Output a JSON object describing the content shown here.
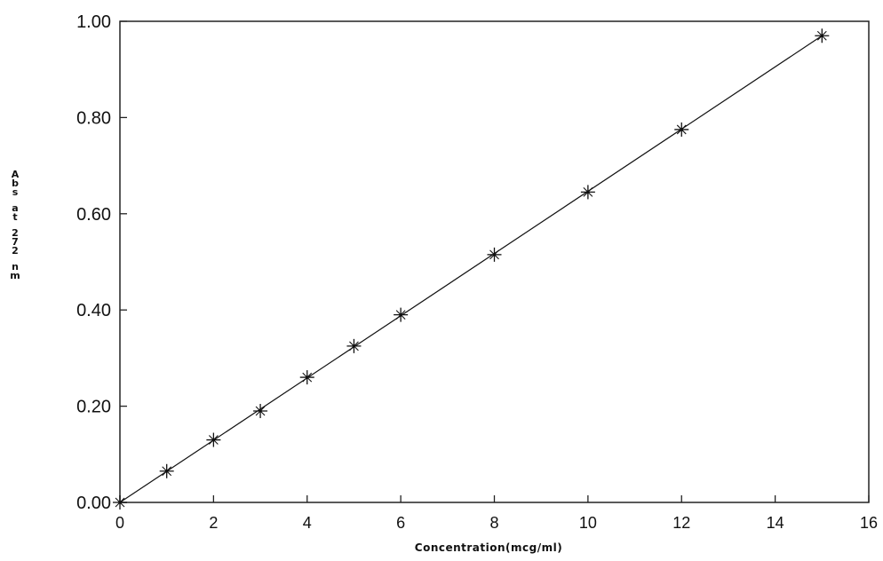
{
  "chart_data": {
    "type": "line",
    "xlabel": "Concentration(mcg/ml)",
    "ylabel": "Abs at 272 nm",
    "xlim": [
      0,
      16
    ],
    "ylim": [
      0,
      1.0
    ],
    "xticks": [
      "0",
      "2",
      "4",
      "6",
      "8",
      "10",
      "12",
      "14",
      "16"
    ],
    "yticks": [
      "0.00",
      "0.20",
      "0.40",
      "0.60",
      "0.80",
      "1.00"
    ],
    "grid": false,
    "series": [
      {
        "marker": "star",
        "x": [
          0,
          1,
          2,
          3,
          4,
          5,
          6,
          8,
          10,
          12,
          15
        ],
        "y": [
          0.0,
          0.065,
          0.13,
          0.19,
          0.26,
          0.325,
          0.39,
          0.515,
          0.645,
          0.775,
          0.97
        ]
      }
    ],
    "fit_line": {
      "x": [
        0,
        15
      ],
      "y": [
        0.0,
        0.97
      ]
    }
  }
}
